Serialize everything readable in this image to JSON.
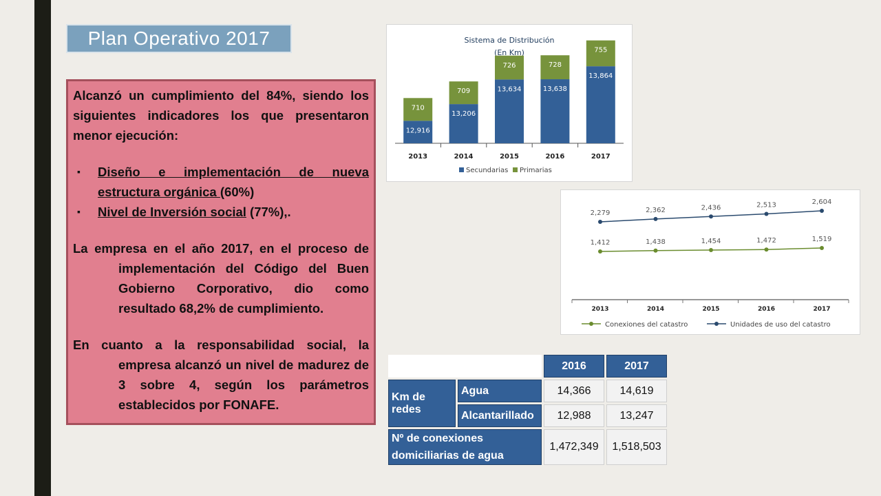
{
  "slide": {
    "title": "Plan Operativo 2017"
  },
  "panel": {
    "intro": "Alcanzó un cumplimiento del 84%, siendo los siguientes indicadores los que presentaron menor ejecución:",
    "bullet1_link": "Diseño e implementación de nueva estructura orgánica ",
    "bullet1_suffix": "(60%)",
    "bullet2_link": "Nivel de Inversión social",
    "bullet2_suffix": " (77%),.",
    "para2": "La empresa en el año 2017, en el proceso de implementación del Código del Buen Gobierno Corporativo, dio como resultado 68,2% de cumplimiento.",
    "para3": "En cuanto a la responsabilidad social, la empresa alcanzó un nivel de madurez de 3 sobre 4, según los parámetros establecidos por FONAFE."
  },
  "colors": {
    "secundarias": "#336097",
    "primarias": "#77933c",
    "conexiones": "#6a8c2e",
    "unidades": "#2a4a6e"
  },
  "chart_data": [
    {
      "type": "bar",
      "stacked": true,
      "title": "Sistema de Distribución",
      "subtitle": "(En Km)",
      "categories": [
        "2013",
        "2014",
        "2015",
        "2016",
        "2017"
      ],
      "series": [
        {
          "name": "Secundarias",
          "values": [
            12916,
            13206,
            13634,
            13638,
            13864
          ],
          "labels": [
            "12,916",
            "13,206",
            "13,634",
            "13,638",
            "13,864"
          ]
        },
        {
          "name": "Primarias",
          "values": [
            710,
            709,
            726,
            728,
            755
          ],
          "labels": [
            "710",
            "709",
            "726",
            "728",
            "755"
          ]
        }
      ],
      "legend": "bottom"
    },
    {
      "type": "line",
      "categories": [
        "2013",
        "2014",
        "2015",
        "2016",
        "2017"
      ],
      "series": [
        {
          "name": "Conexiones del catastro",
          "values": [
            1412,
            1438,
            1454,
            1472,
            1519
          ],
          "labels": [
            "1,412",
            "1,438",
            "1,454",
            "1,472",
            "1,519"
          ]
        },
        {
          "name": "Unidades de uso del catastro",
          "values": [
            2279,
            2362,
            2436,
            2513,
            2604
          ],
          "labels": [
            "2,279",
            "2,362",
            "2,436",
            "2,513",
            "2,604"
          ]
        }
      ],
      "legend": "bottom"
    },
    {
      "type": "table",
      "headers": [
        "2016",
        "2017"
      ],
      "group_label": "Km de redes",
      "rows": [
        {
          "label": "Agua",
          "v2016": "14,366",
          "v2017": "14,619"
        },
        {
          "label": "Alcantarillado",
          "v2016": "12,988",
          "v2017": "13,247"
        }
      ],
      "connections": {
        "label": "Nº de conexiones domiciliarias de agua",
        "v2016": "1,472,349",
        "v2017": "1,518,503"
      }
    }
  ]
}
